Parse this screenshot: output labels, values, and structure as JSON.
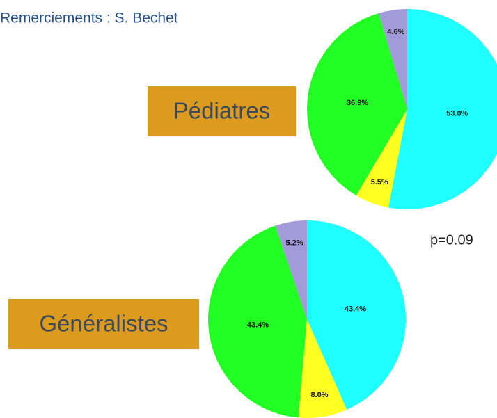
{
  "header": {
    "credit": "Remerciements : S. Bechet"
  },
  "annotation": "p=0.09",
  "chart_data": [
    {
      "type": "pie",
      "title": "Pédiatres",
      "values": [
        53.0,
        5.5,
        36.9,
        4.6
      ],
      "value_labels": [
        "53.0%",
        "5.5%",
        "36.9%",
        "4.6%"
      ],
      "colors": [
        "#1effff",
        "#ffff22",
        "#22ff22",
        "#a39bd9"
      ]
    },
    {
      "type": "pie",
      "title": "Généralistes",
      "values": [
        43.4,
        8.0,
        43.4,
        5.2
      ],
      "value_labels": [
        "43.4%",
        "8.0%",
        "43.4%",
        "5.2%"
      ],
      "colors": [
        "#1effff",
        "#ffff22",
        "#22ff22",
        "#a39bd9"
      ]
    }
  ]
}
